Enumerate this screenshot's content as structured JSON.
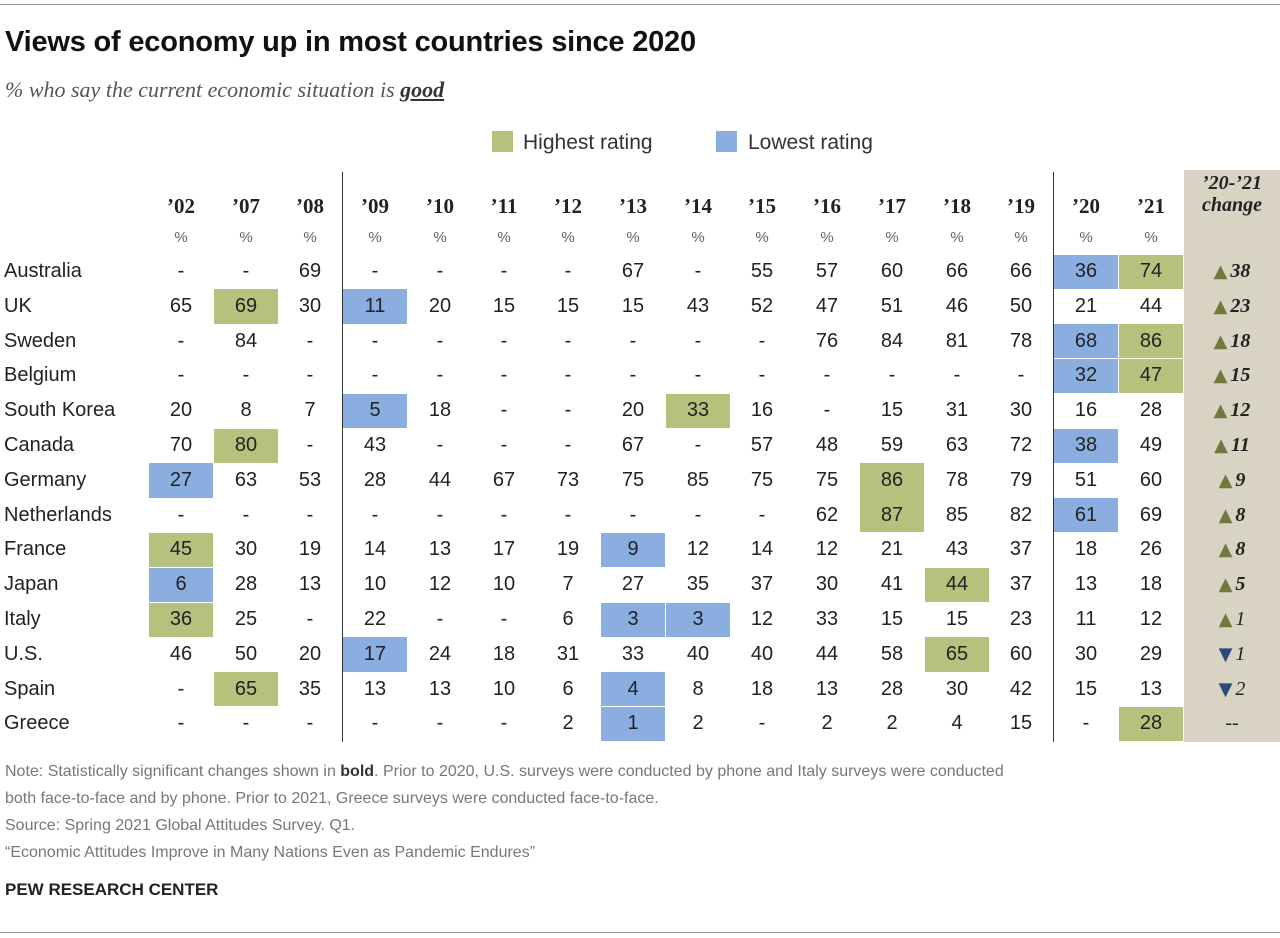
{
  "header": {
    "title": "Views of economy up in most countries since 2020",
    "subtitle_prefix": "% who say the current economic situation is ",
    "subtitle_emphasis": "good"
  },
  "legend": {
    "highest": {
      "label": "Highest rating",
      "color": "#b6c17d"
    },
    "lowest": {
      "label": "Lowest rating",
      "color": "#8aaee0"
    }
  },
  "chart_data": {
    "type": "table",
    "title": "Views of economy up in most countries since 2020",
    "subtitle": "% who say the current economic situation is good",
    "columns": [
      "’02",
      "’07",
      "’08",
      "’09",
      "’10",
      "’11",
      "’12",
      "’13",
      "’14",
      "’15",
      "’16",
      "’17",
      "’18",
      "’19",
      "’20",
      "’21"
    ],
    "unit_label": "%",
    "change_header": [
      "’20-’21",
      "change"
    ],
    "rows": [
      {
        "country": "Australia",
        "values": [
          "-",
          "-",
          "69",
          "-",
          "-",
          "-",
          "-",
          "67",
          "-",
          "55",
          "57",
          "60",
          "66",
          "66",
          "36",
          "74"
        ],
        "highest": [
          15
        ],
        "lowest": [
          14
        ],
        "change": {
          "dir": "up",
          "value": "38",
          "significant": true
        }
      },
      {
        "country": "UK",
        "values": [
          "65",
          "69",
          "30",
          "11",
          "20",
          "15",
          "15",
          "15",
          "43",
          "52",
          "47",
          "51",
          "46",
          "50",
          "21",
          "44"
        ],
        "highest": [
          1
        ],
        "lowest": [
          3
        ],
        "change": {
          "dir": "up",
          "value": "23",
          "significant": true
        }
      },
      {
        "country": "Sweden",
        "values": [
          "-",
          "84",
          "-",
          "-",
          "-",
          "-",
          "-",
          "-",
          "-",
          "-",
          "76",
          "84",
          "81",
          "78",
          "68",
          "86"
        ],
        "highest": [
          15
        ],
        "lowest": [
          14
        ],
        "change": {
          "dir": "up",
          "value": "18",
          "significant": true
        }
      },
      {
        "country": "Belgium",
        "values": [
          "-",
          "-",
          "-",
          "-",
          "-",
          "-",
          "-",
          "-",
          "-",
          "-",
          "-",
          "-",
          "-",
          "-",
          "32",
          "47"
        ],
        "highest": [
          15
        ],
        "lowest": [
          14
        ],
        "change": {
          "dir": "up",
          "value": "15",
          "significant": true
        }
      },
      {
        "country": "South Korea",
        "values": [
          "20",
          "8",
          "7",
          "5",
          "18",
          "-",
          "-",
          "20",
          "33",
          "16",
          "-",
          "15",
          "31",
          "30",
          "16",
          "28"
        ],
        "highest": [
          8
        ],
        "lowest": [
          3
        ],
        "change": {
          "dir": "up",
          "value": "12",
          "significant": true
        }
      },
      {
        "country": "Canada",
        "values": [
          "70",
          "80",
          "-",
          "43",
          "-",
          "-",
          "-",
          "67",
          "-",
          "57",
          "48",
          "59",
          "63",
          "72",
          "38",
          "49"
        ],
        "highest": [
          1
        ],
        "lowest": [
          14
        ],
        "change": {
          "dir": "up",
          "value": "11",
          "significant": true
        }
      },
      {
        "country": "Germany",
        "values": [
          "27",
          "63",
          "53",
          "28",
          "44",
          "67",
          "73",
          "75",
          "85",
          "75",
          "75",
          "86",
          "78",
          "79",
          "51",
          "60"
        ],
        "highest": [
          11
        ],
        "lowest": [
          0
        ],
        "change": {
          "dir": "up",
          "value": "9",
          "significant": true
        }
      },
      {
        "country": "Netherlands",
        "values": [
          "-",
          "-",
          "-",
          "-",
          "-",
          "-",
          "-",
          "-",
          "-",
          "-",
          "62",
          "87",
          "85",
          "82",
          "61",
          "69"
        ],
        "highest": [
          11
        ],
        "lowest": [
          14
        ],
        "change": {
          "dir": "up",
          "value": "8",
          "significant": true
        }
      },
      {
        "country": "France",
        "values": [
          "45",
          "30",
          "19",
          "14",
          "13",
          "17",
          "19",
          "9",
          "12",
          "14",
          "12",
          "21",
          "43",
          "37",
          "18",
          "26"
        ],
        "highest": [
          0
        ],
        "lowest": [
          7
        ],
        "change": {
          "dir": "up",
          "value": "8",
          "significant": true
        }
      },
      {
        "country": "Japan",
        "values": [
          "6",
          "28",
          "13",
          "10",
          "12",
          "10",
          "7",
          "27",
          "35",
          "37",
          "30",
          "41",
          "44",
          "37",
          "13",
          "18"
        ],
        "highest": [
          12
        ],
        "lowest": [
          0
        ],
        "change": {
          "dir": "up",
          "value": "5",
          "significant": true
        }
      },
      {
        "country": "Italy",
        "values": [
          "36",
          "25",
          "-",
          "22",
          "-",
          "-",
          "6",
          "3",
          "3",
          "12",
          "33",
          "15",
          "15",
          "23",
          "11",
          "12"
        ],
        "highest": [
          0
        ],
        "lowest": [
          7,
          8
        ],
        "change": {
          "dir": "up",
          "value": "1",
          "significant": false
        }
      },
      {
        "country": "U.S.",
        "values": [
          "46",
          "50",
          "20",
          "17",
          "24",
          "18",
          "31",
          "33",
          "40",
          "40",
          "44",
          "58",
          "65",
          "60",
          "30",
          "29"
        ],
        "highest": [
          12
        ],
        "lowest": [
          3
        ],
        "change": {
          "dir": "down",
          "value": "1",
          "significant": false
        }
      },
      {
        "country": "Spain",
        "values": [
          "-",
          "65",
          "35",
          "13",
          "13",
          "10",
          "6",
          "4",
          "8",
          "18",
          "13",
          "28",
          "30",
          "42",
          "15",
          "13"
        ],
        "highest": [
          1
        ],
        "lowest": [
          7
        ],
        "change": {
          "dir": "down",
          "value": "2",
          "significant": false
        }
      },
      {
        "country": "Greece",
        "values": [
          "-",
          "-",
          "-",
          "-",
          "-",
          "-",
          "2",
          "1",
          "2",
          "-",
          "2",
          "2",
          "4",
          "15",
          "-",
          "28"
        ],
        "highest": [
          15
        ],
        "lowest": [
          7
        ],
        "change": {
          "dir": "none",
          "value": "--",
          "significant": false
        }
      }
    ]
  },
  "notes": {
    "note_prefix": "Note: Statistically significant changes shown in ",
    "note_bold": "bold",
    "note_rest_line1": ". Prior to 2020, U.S. surveys were conducted by phone and Italy surveys were conducted",
    "note_line2": "both face-to-face and by phone. Prior to 2021, Greece surveys were conducted face-to-face.",
    "source": "Source: Spring 2021 Global Attitudes Survey. Q1.",
    "report": "“Economic Attitudes Improve in Many Nations Even as Pandemic Endures”",
    "org": "PEW RESEARCH CENTER"
  }
}
